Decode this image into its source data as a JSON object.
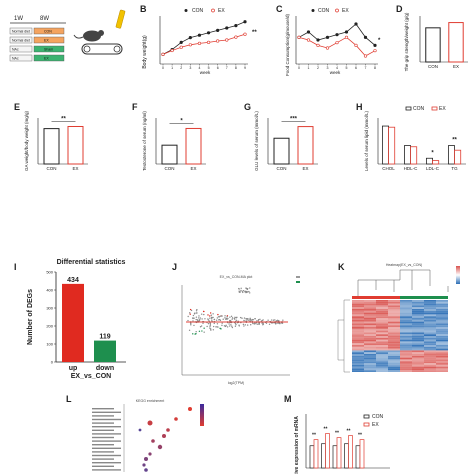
{
  "colors": {
    "con": "#222222",
    "ex": "#e03c31",
    "up": "#e02a20",
    "down": "#1e8f4e",
    "heat_high": "#d9534f",
    "heat_low": "#2a6db5"
  },
  "panelA": {
    "weeks": [
      "1W",
      "8W"
    ],
    "groups": [
      {
        "diet": "Normal diet",
        "treat": "CON"
      },
      {
        "diet": "Normal diet",
        "treat": "EX"
      },
      {
        "diet": "NAc",
        "treat": "Sham"
      },
      {
        "diet": "NAc",
        "treat": "EX"
      }
    ]
  },
  "panelB": {
    "ylabel": "Body weight(g)",
    "xlabel": "week",
    "legend": [
      "CON",
      "EX"
    ],
    "sig": "**",
    "x": [
      0,
      1,
      2,
      3,
      4,
      5,
      6,
      7,
      8,
      9
    ],
    "con": [
      20.0,
      21.0,
      22.5,
      23.5,
      24.0,
      24.5,
      25.0,
      25.5,
      26.0,
      26.8
    ],
    "ex": [
      20.0,
      20.8,
      21.5,
      22.0,
      22.3,
      22.5,
      22.8,
      23.0,
      23.6,
      24.2
    ]
  },
  "panelC": {
    "ylabel": "Food Consumption(g/mouse/d)",
    "xlabel": "week",
    "legend": [
      "CON",
      "EX"
    ],
    "sig": "*",
    "x": [
      0,
      1,
      2,
      3,
      4,
      5,
      6,
      7,
      8
    ],
    "con": [
      3.4,
      3.6,
      3.3,
      3.4,
      3.5,
      3.6,
      3.9,
      3.4,
      3.1
    ],
    "ex": [
      3.4,
      3.3,
      3.1,
      3.0,
      3.2,
      3.4,
      3.1,
      2.7,
      2.9
    ]
  },
  "panelD": {
    "ylabel": "The grip strength/weight (g/g)",
    "categories": [
      "CON",
      "EX"
    ],
    "values": [
      5.2,
      6.0
    ]
  },
  "panelE": {
    "letter": "E",
    "ylabel": "GA weight/body weight (mg/g)",
    "categories": [
      "CON",
      "EX"
    ],
    "values": [
      5.0,
      5.3
    ],
    "sig": "**"
  },
  "panelF": {
    "letter": "F",
    "ylabel": "Testosterone of serum (ng/ml)",
    "categories": [
      "CON",
      "EX"
    ],
    "values": [
      0.9,
      1.7
    ],
    "sig": "*"
  },
  "panelG": {
    "letter": "G",
    "ylabel": "GLU levels of serum (mmol/L)",
    "categories": [
      "CON",
      "EX"
    ],
    "values": [
      4.2,
      6.1
    ],
    "sig": "***"
  },
  "panelH": {
    "letter": "H",
    "ylabel": "Levels of serum lipid (mmol/L)",
    "legend": [
      "CON",
      "EX"
    ],
    "categories": [
      "CHOL",
      "HDL-C",
      "LDL-C",
      "TG"
    ],
    "con": [
      3.3,
      1.6,
      0.5,
      1.6
    ],
    "ex": [
      3.2,
      1.5,
      0.3,
      1.2
    ],
    "sig": [
      "",
      "",
      "*",
      "**"
    ]
  },
  "panelI": {
    "letter": "I",
    "title": "Differential statistics",
    "ylabel": "Number of DEGs",
    "xlabel": "EX_vs_CON",
    "categories": [
      "up",
      "down"
    ],
    "values": [
      434,
      119
    ],
    "labels": [
      "434",
      "119"
    ]
  },
  "panelJ": {
    "letter": "J",
    "title": "EX_vs_CON-MA plot",
    "xlabel": "log2(TPM)"
  },
  "panelK": {
    "letter": "K",
    "title": "Heatmap(EX_vs_CON)"
  },
  "panelL": {
    "letter": "L",
    "title": "KEGG enrichment"
  },
  "panelM": {
    "letter": "M",
    "ylabel": "Relative expression of mRNA",
    "legend": [
      "CON",
      "EX"
    ],
    "sig": [
      "**",
      "**",
      "**",
      "**",
      "**"
    ]
  },
  "letters": {
    "a": "A",
    "b": "B",
    "c": "C",
    "d": "D"
  }
}
